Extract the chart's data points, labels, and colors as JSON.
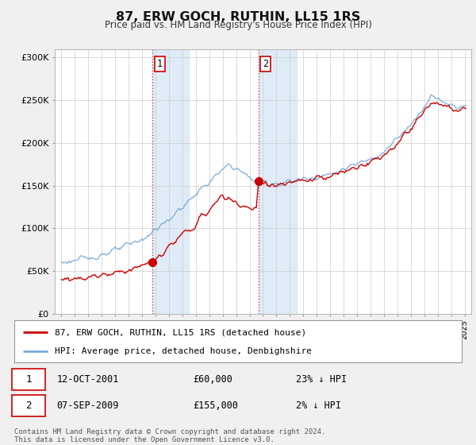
{
  "title": "87, ERW GOCH, RUTHIN, LL15 1RS",
  "subtitle": "Price paid vs. HM Land Registry's House Price Index (HPI)",
  "ylim": [
    0,
    310000
  ],
  "yticks": [
    0,
    50000,
    100000,
    150000,
    200000,
    250000,
    300000
  ],
  "ytick_labels": [
    "£0",
    "£50K",
    "£100K",
    "£150K",
    "£200K",
    "£250K",
    "£300K"
  ],
  "xmin": 1994.5,
  "xmax": 2025.5,
  "shading1_start": 2001.79,
  "shading1_end": 2004.5,
  "shading2_start": 2009.68,
  "shading2_end": 2012.5,
  "sale1_x": 2001.79,
  "sale1_y": 60000,
  "sale1_label": "1",
  "sale2_x": 2009.68,
  "sale2_y": 155000,
  "sale2_label": "2",
  "legend_line1_label": "87, ERW GOCH, RUTHIN, LL15 1RS (detached house)",
  "legend_line1_color": "#cc0000",
  "legend_line2_label": "HPI: Average price, detached house, Denbighshire",
  "legend_line2_color": "#7aabdb",
  "table_rows": [
    {
      "num": "1",
      "date": "12-OCT-2001",
      "price": "£60,000",
      "hpi": "23% ↓ HPI"
    },
    {
      "num": "2",
      "date": "07-SEP-2009",
      "price": "£155,000",
      "hpi": "2% ↓ HPI"
    }
  ],
  "footer": "Contains HM Land Registry data © Crown copyright and database right 2024.\nThis data is licensed under the Open Government Licence v3.0.",
  "bg_color": "#f0f0f0",
  "plot_bg_color": "#ffffff",
  "grid_color": "#cccccc",
  "shade_color": "#d8e8f5",
  "shade_alpha": 0.8
}
